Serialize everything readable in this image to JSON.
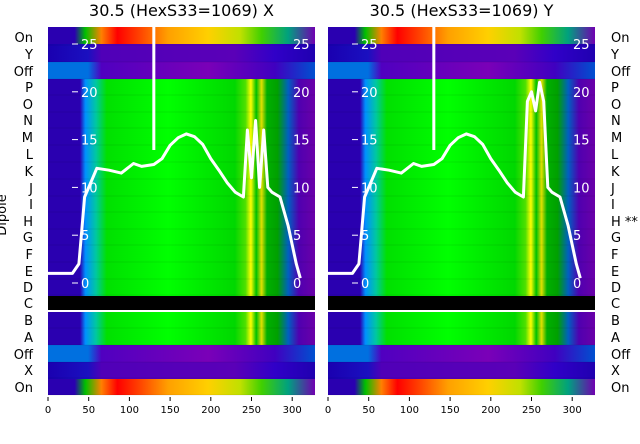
{
  "chart_data": [
    {
      "type": "heatmap",
      "title": "30.5 (HexS33=1069) X",
      "xlabel": "",
      "ylabel": "Dipole",
      "xlim": [
        0,
        328
      ],
      "x_ticks": [
        0,
        50,
        100,
        150,
        200,
        250,
        300
      ],
      "y_ticks": [
        0,
        5,
        10,
        15,
        20,
        25
      ],
      "ylim": [
        -2.6,
        27.5
      ],
      "rows_top": [
        "On",
        "Y",
        "Off",
        "P",
        "O",
        "N",
        "M",
        "L",
        "K",
        "J",
        "I",
        "H",
        "G",
        "F",
        "E",
        "D"
      ],
      "separator_row": "C",
      "rows_bottom": [
        "B",
        "A",
        "Off",
        "X",
        "On"
      ],
      "trace": {
        "x": [
          0,
          30,
          38,
          45,
          55,
          60,
          75,
          90,
          105,
          115,
          130,
          140,
          150,
          160,
          170,
          180,
          190,
          200,
          210,
          220,
          230,
          240,
          245,
          250,
          255,
          260,
          265,
          270,
          275,
          285,
          295,
          300,
          305,
          310
        ],
        "y": [
          1,
          1,
          2,
          9,
          11,
          12,
          11.8,
          11.5,
          12.5,
          12.2,
          12.4,
          13,
          14.4,
          15.2,
          15.6,
          15.3,
          14.5,
          13,
          11.8,
          10.5,
          9.5,
          9,
          16,
          11,
          17,
          10,
          16,
          10,
          9.5,
          9,
          6,
          4,
          2,
          0.5
        ]
      }
    },
    {
      "type": "heatmap",
      "title": "30.5 (HexS33=1069) Y",
      "xlabel": "",
      "xlim": [
        0,
        328
      ],
      "x_ticks": [
        0,
        50,
        100,
        150,
        200,
        250,
        300
      ],
      "y_ticks": [
        0,
        5,
        10,
        15,
        20,
        25
      ],
      "ylim": [
        -2.6,
        27.5
      ],
      "rows_top": [
        "On",
        "Y",
        "Off",
        "P",
        "O",
        "N",
        "M",
        "L",
        "K",
        "J",
        "I",
        "H **",
        "G",
        "F",
        "E",
        "D"
      ],
      "separator_row": "C",
      "rows_bottom": [
        "B",
        "A",
        "Off",
        "X",
        "On"
      ],
      "trace": {
        "x": [
          0,
          30,
          38,
          45,
          55,
          60,
          75,
          90,
          105,
          115,
          130,
          140,
          150,
          160,
          170,
          180,
          190,
          200,
          210,
          220,
          230,
          240,
          245,
          250,
          255,
          260,
          265,
          270,
          275,
          285,
          295,
          300,
          305,
          310
        ],
        "y": [
          1,
          1,
          2,
          9,
          11,
          12,
          11.8,
          11.5,
          12.5,
          12.2,
          12.4,
          13,
          14.4,
          15.2,
          15.6,
          15.3,
          14.5,
          13,
          11.8,
          10.5,
          9.5,
          9,
          19,
          20,
          18,
          21,
          19,
          10,
          9.5,
          9,
          6,
          4,
          2,
          0.5
        ]
      }
    }
  ]
}
